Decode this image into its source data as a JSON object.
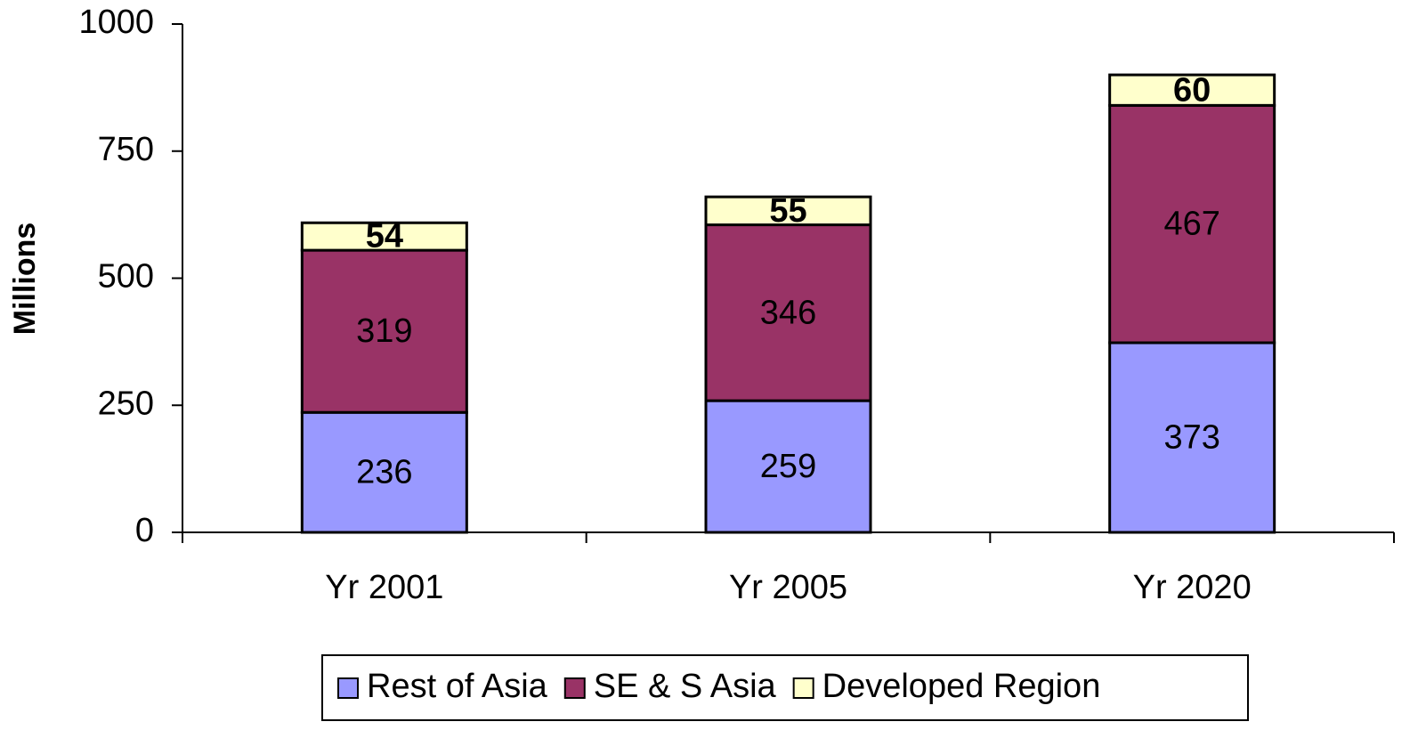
{
  "chart_data": {
    "type": "stacked_bar",
    "y_label": "Millions",
    "categories": [
      "Yr 2001",
      "Yr 2005",
      "Yr 2020"
    ],
    "series": [
      {
        "name": "Rest of Asia",
        "color": "#9999ff",
        "values": [
          236,
          259,
          373
        ]
      },
      {
        "name": "SE & S Asia",
        "color": "#993366",
        "values": [
          319,
          346,
          467
        ]
      },
      {
        "name": "Developed Region",
        "color": "#ffffcc",
        "values": [
          54,
          55,
          60
        ]
      }
    ],
    "ylim": [
      0,
      1000
    ],
    "yticks": [
      0,
      250,
      500,
      750,
      1000
    ],
    "grid": false,
    "legend": "bottom"
  }
}
